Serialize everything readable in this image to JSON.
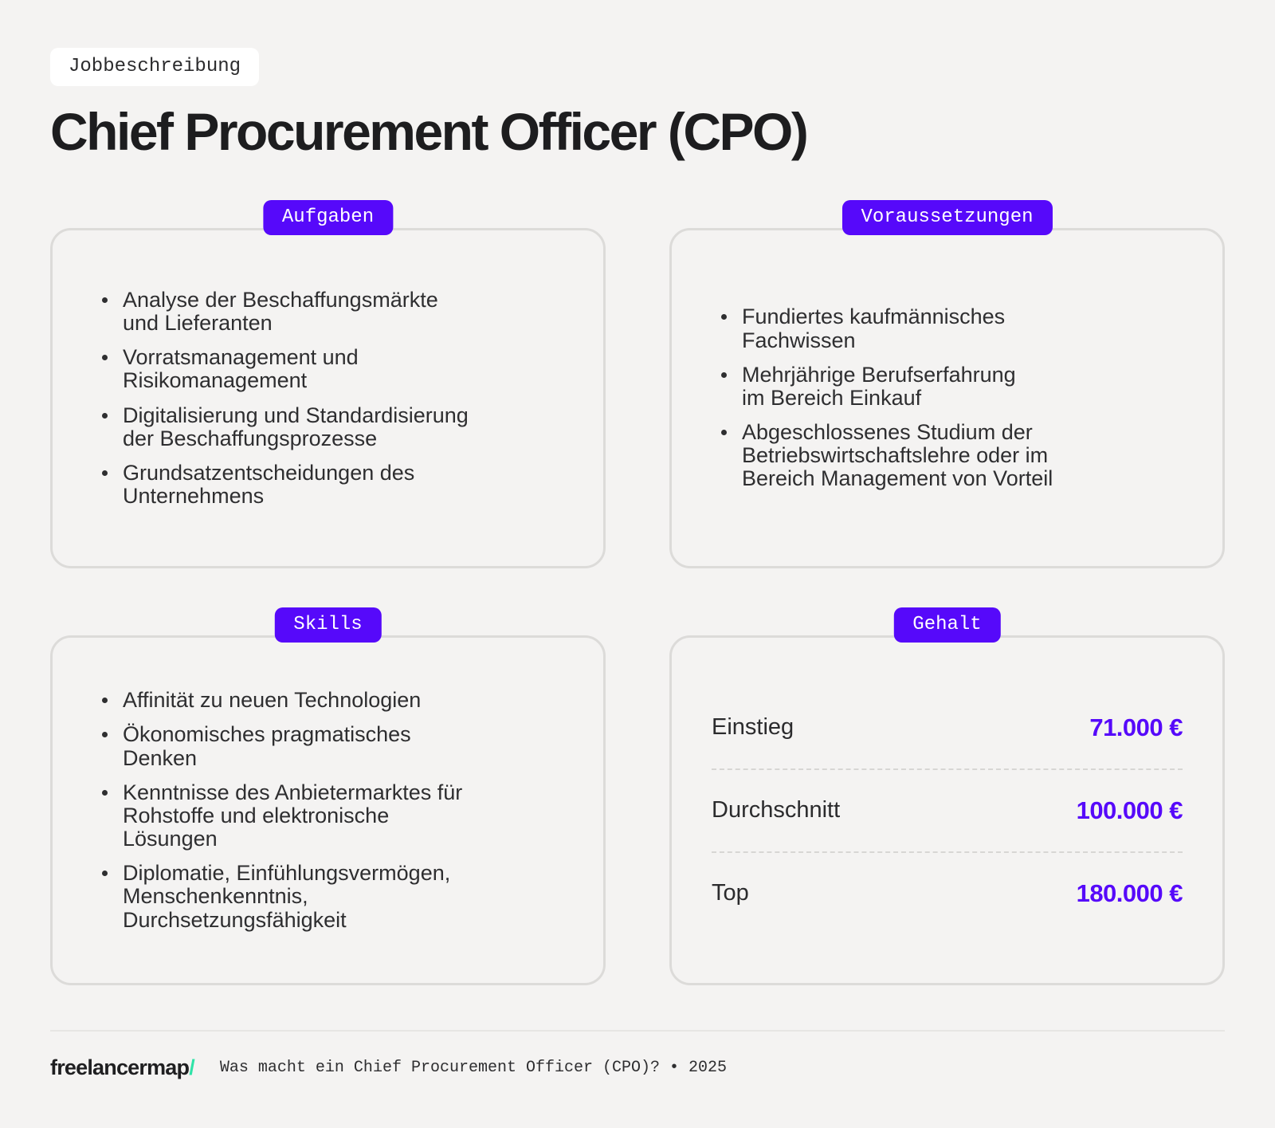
{
  "page": {
    "eyebrow": "Jobbeschreibung",
    "title": "Chief Procurement Officer (CPO)"
  },
  "cards": {
    "aufgaben": {
      "badge": "Aufgaben",
      "items": [
        "Analyse der Beschaffungsmärkte\nund Lieferanten",
        "Vorratsmanagement und\nRisikomanagement",
        "Digitalisierung und Standardisierung\nder Beschaffungsprozesse",
        "Grundsatzentscheidungen des\nUnternehmens"
      ]
    },
    "voraussetzungen": {
      "badge": "Voraussetzungen",
      "items": [
        "Fundiertes kaufmännisches\nFachwissen",
        "Mehrjährige Berufserfahrung\nim Bereich Einkauf",
        "Abgeschlossenes Studium der\nBetriebswirtschaftslehre oder im\nBereich Management von Vorteil"
      ]
    },
    "skills": {
      "badge": "Skills",
      "items": [
        "Affinität zu neuen Technologien",
        "Ökonomisches pragmatisches\nDenken",
        "Kenntnisse des Anbietermarktes für\nRohstoffe und elektronische\nLösungen",
        "Diplomatie, Einfühlungsvermögen,\nMenschenkenntnis,\nDurchsetzungsfähigkeit"
      ]
    },
    "gehalt": {
      "badge": "Gehalt",
      "rows": [
        {
          "label": "Einstieg",
          "value": "71.000 €"
        },
        {
          "label": "Durchschnitt",
          "value": "100.000 €"
        },
        {
          "label": "Top",
          "value": "180.000 €"
        }
      ]
    }
  },
  "footer": {
    "brand": "freelancermap",
    "brand_slash": "/",
    "caption": "Was macht ein Chief Procurement Officer (CPO)? • 2025"
  },
  "colors": {
    "accent_purple": "#5609fa",
    "brand_teal": "#2fe3a8",
    "background": "#f4f3f2",
    "card_border": "#dcdbd9",
    "text_dark": "#1d1d1f",
    "text_body": "#2e2e30"
  }
}
